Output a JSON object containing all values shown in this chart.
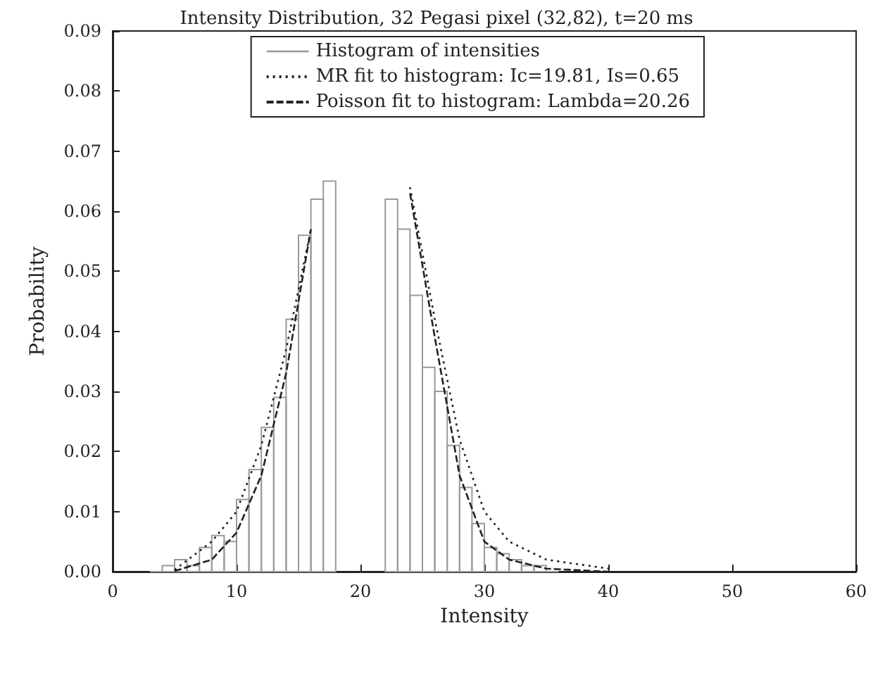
{
  "chart_data": {
    "type": "histogram",
    "title": "Intensity Distribution, 32 Pegasi pixel (32,82), t=20 ms",
    "xlabel": "Intensity",
    "ylabel": "Probability",
    "xlim": [
      0,
      60
    ],
    "xticks": [
      0,
      10,
      20,
      30,
      40,
      50,
      60
    ],
    "ylim": [
      0,
      0.09
    ],
    "yticks": [
      {
        "value": 0,
        "label": "0.00"
      },
      {
        "value": 0.01,
        "label": "0.01"
      },
      {
        "value": 0.02,
        "label": "0.02"
      },
      {
        "value": 0.03,
        "label": "0.03"
      },
      {
        "value": 0.04,
        "label": "0.04"
      },
      {
        "value": 0.05,
        "label": "0.05"
      },
      {
        "value": 0.06,
        "label": "0.06"
      },
      {
        "value": 0.07,
        "label": "0.07"
      },
      {
        "value": 0.08,
        "label": "0.08"
      },
      {
        "value": 0.09,
        "label": "0.09"
      }
    ],
    "grid": false,
    "legend": "top right",
    "marker": "none",
    "series": [
      {
        "name": "Histogram of intensities",
        "type": "histogram",
        "color": "#9a9a9a",
        "bins": [
          3,
          4,
          5,
          6,
          7,
          8,
          9,
          10,
          11,
          12,
          13,
          14,
          15,
          16,
          17,
          18,
          19,
          20,
          21,
          22,
          23,
          24,
          25,
          26,
          27,
          28,
          29,
          30,
          31,
          32,
          33,
          34,
          35,
          36
        ],
        "values": [
          0,
          0.001,
          0.002,
          0.001,
          0.004,
          0.006,
          0.005,
          0.012,
          0.017,
          0.024,
          0.029,
          0.042,
          0.056,
          0.062,
          0.065,
          null,
          null,
          null,
          null,
          0.062,
          0.057,
          0.046,
          0.034,
          0.03,
          0.021,
          0.014,
          0.008,
          0.004,
          0.003,
          0.002,
          0.001,
          0.001,
          0
        ]
      },
      {
        "name": "MR fit to histogram: Ic=19.81, Is=0.65",
        "type": "line",
        "color": "#222222",
        "line_style": "dotted",
        "x": [
          5,
          8,
          10,
          12,
          14,
          16,
          18,
          20,
          22,
          24,
          26,
          28,
          30,
          32,
          35,
          40
        ],
        "values": [
          0.0003,
          0.005,
          0.01,
          0.021,
          0.037,
          0.057,
          null,
          null,
          null,
          0.064,
          0.042,
          0.022,
          0.01,
          0.005,
          0.002,
          0.0005
        ]
      },
      {
        "name": "Poisson fit to histogram: Lambda=20.26",
        "type": "line",
        "color": "#222222",
        "line_style": "dashed",
        "x": [
          5,
          8,
          10,
          12,
          14,
          16,
          18,
          20,
          22,
          24,
          26,
          28,
          30,
          32,
          35,
          40
        ],
        "values": [
          0.0001,
          0.002,
          0.0065,
          0.016,
          0.033,
          0.057,
          null,
          null,
          null,
          0.063,
          0.039,
          0.016,
          0.005,
          0.002,
          0.0005,
          0
        ]
      }
    ]
  }
}
